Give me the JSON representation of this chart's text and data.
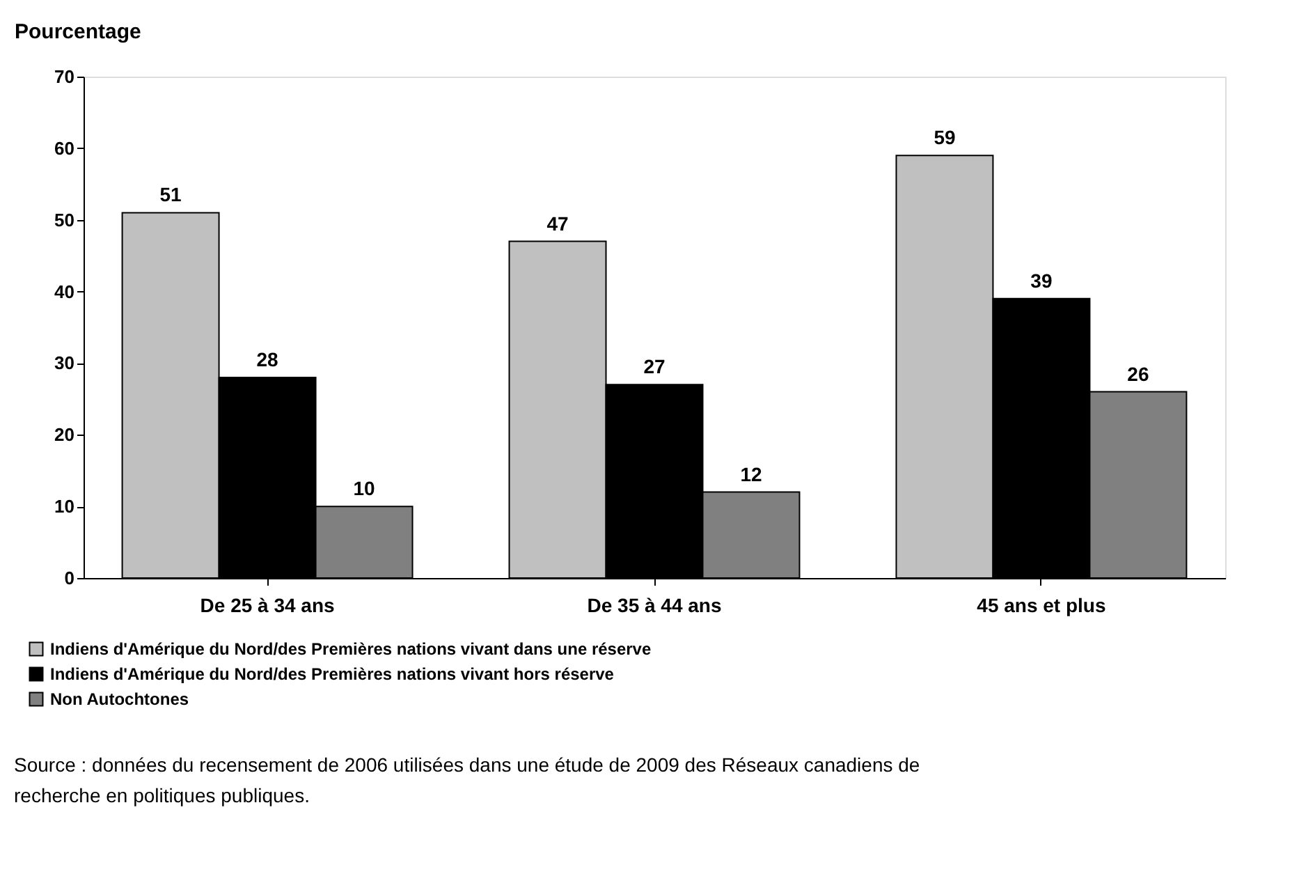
{
  "chart_data": {
    "type": "bar",
    "ylabel": "Pourcentage",
    "categories": [
      "De 25 à 34 ans",
      "De 35 à 44 ans",
      "45 ans et plus"
    ],
    "series": [
      {
        "name": "Indiens d'Amérique du Nord/des Premières nations vivant dans une réserve",
        "color": "#c0c0c0",
        "values": [
          51,
          47,
          59
        ]
      },
      {
        "name": "Indiens d'Amérique du Nord/des Premières nations vivant hors réserve",
        "color": "#000000",
        "values": [
          28,
          27,
          39
        ]
      },
      {
        "name": "Non Autochtones",
        "color": "#808080",
        "values": [
          10,
          12,
          26
        ]
      }
    ],
    "ylim": [
      0,
      70
    ],
    "yticks": [
      0,
      10,
      20,
      30,
      40,
      50,
      60,
      70
    ],
    "grid": false,
    "legend": "bottom left",
    "data_labels": true,
    "annotations": [
      "Source : données du recensement de 2006 utilisées dans une étude de 2009 des Réseaux canadiens de recherche en politiques publiques."
    ]
  }
}
